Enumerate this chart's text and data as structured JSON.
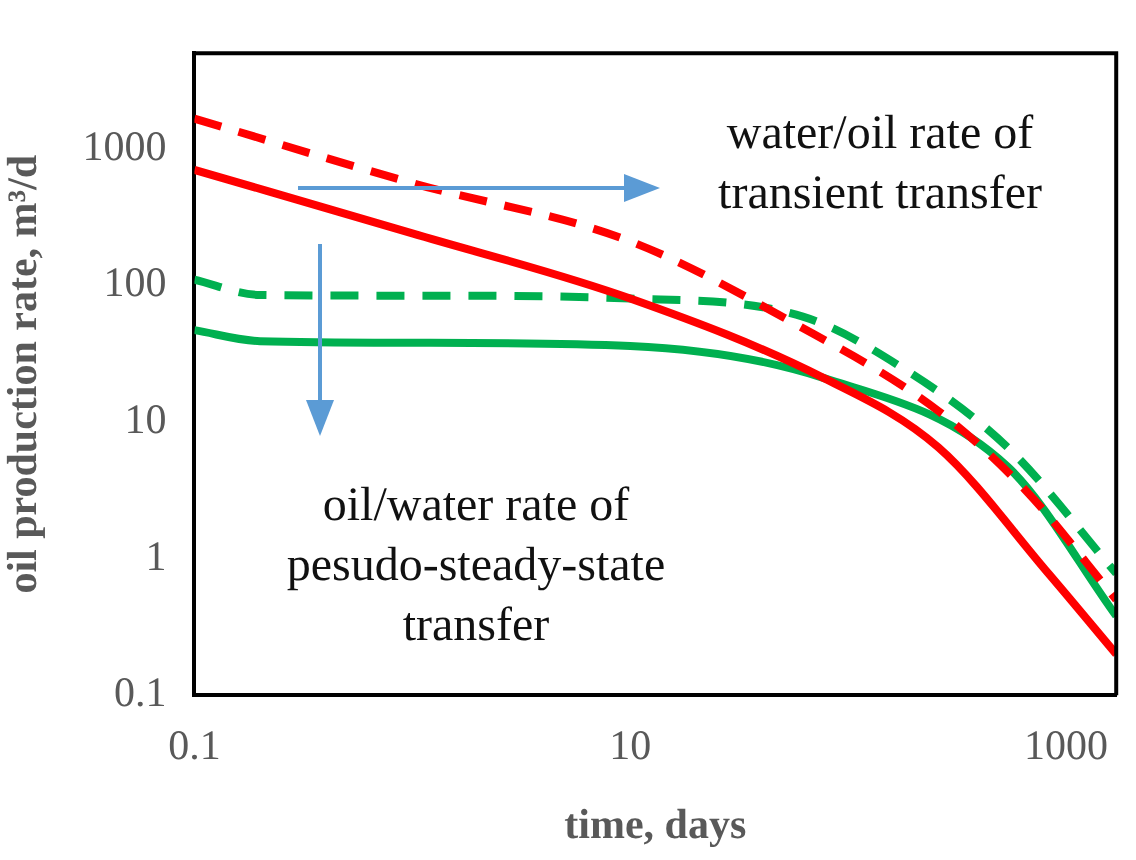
{
  "chart_data": {
    "type": "line",
    "xlabel": "time, days",
    "ylabel": "oil production rate, m³/d",
    "log": "xy",
    "grid": false,
    "legend": false,
    "marker": "none",
    "xlim": [
      0.1,
      1700
    ],
    "xticks": [
      0.1,
      10,
      1000
    ],
    "ylim": [
      0.1,
      5000
    ],
    "yticks": [
      0.1,
      1,
      10,
      100,
      1000
    ],
    "annotations": [
      "water/oil rate of transient transfer",
      "oil/water rate of pesudo-steady-state transfer"
    ],
    "series": [
      {
        "color": "#ff0000",
        "line_style": "dashed",
        "x": [
          0.1,
          1,
          10,
          55,
          260,
          660,
          1700
        ],
        "values": [
          1660,
          560,
          210,
          54,
          12,
          3.1,
          0.5
        ]
      },
      {
        "color": "#ff0000",
        "line_style": "solid",
        "x": [
          0.1,
          1,
          10,
          77,
          260,
          830,
          1700
        ],
        "values": [
          700,
          240,
          80,
          21,
          6.5,
          0.78,
          0.2
        ]
      },
      {
        "color": "#00b050",
        "line_style": "dashed",
        "x": [
          0.1,
          0.2,
          1,
          10,
          62,
          170,
          540,
          1700
        ],
        "values": [
          110,
          85,
          84,
          80,
          59,
          26,
          6.5,
          0.78
        ]
      },
      {
        "color": "#00b050",
        "line_style": "solid",
        "x": [
          0.1,
          0.2,
          1,
          10,
          77,
          540,
          1700
        ],
        "values": [
          47,
          39,
          38,
          36,
          21,
          4.7,
          0.38
        ]
      }
    ]
  }
}
